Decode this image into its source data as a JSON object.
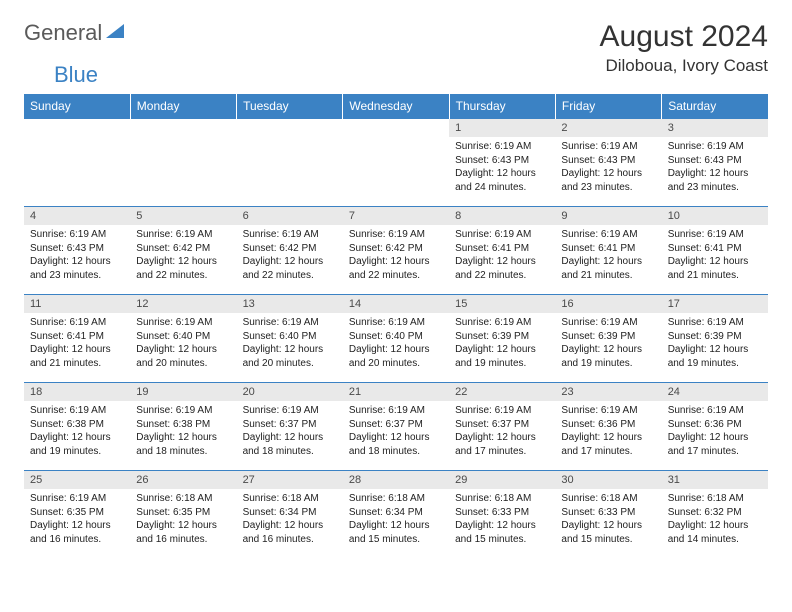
{
  "logo": {
    "general": "General",
    "blue": "Blue"
  },
  "title": "August 2024",
  "location": "Diloboua, Ivory Coast",
  "colors": {
    "headerBg": "#3b82c4",
    "dayBg": "#e9e9e9"
  },
  "weekdays": [
    "Sunday",
    "Monday",
    "Tuesday",
    "Wednesday",
    "Thursday",
    "Friday",
    "Saturday"
  ],
  "weeks": [
    [
      null,
      null,
      null,
      null,
      {
        "n": "1",
        "sr": "6:19 AM",
        "ss": "6:43 PM",
        "dl": "12 hours and 24 minutes."
      },
      {
        "n": "2",
        "sr": "6:19 AM",
        "ss": "6:43 PM",
        "dl": "12 hours and 23 minutes."
      },
      {
        "n": "3",
        "sr": "6:19 AM",
        "ss": "6:43 PM",
        "dl": "12 hours and 23 minutes."
      }
    ],
    [
      {
        "n": "4",
        "sr": "6:19 AM",
        "ss": "6:43 PM",
        "dl": "12 hours and 23 minutes."
      },
      {
        "n": "5",
        "sr": "6:19 AM",
        "ss": "6:42 PM",
        "dl": "12 hours and 22 minutes."
      },
      {
        "n": "6",
        "sr": "6:19 AM",
        "ss": "6:42 PM",
        "dl": "12 hours and 22 minutes."
      },
      {
        "n": "7",
        "sr": "6:19 AM",
        "ss": "6:42 PM",
        "dl": "12 hours and 22 minutes."
      },
      {
        "n": "8",
        "sr": "6:19 AM",
        "ss": "6:41 PM",
        "dl": "12 hours and 22 minutes."
      },
      {
        "n": "9",
        "sr": "6:19 AM",
        "ss": "6:41 PM",
        "dl": "12 hours and 21 minutes."
      },
      {
        "n": "10",
        "sr": "6:19 AM",
        "ss": "6:41 PM",
        "dl": "12 hours and 21 minutes."
      }
    ],
    [
      {
        "n": "11",
        "sr": "6:19 AM",
        "ss": "6:41 PM",
        "dl": "12 hours and 21 minutes."
      },
      {
        "n": "12",
        "sr": "6:19 AM",
        "ss": "6:40 PM",
        "dl": "12 hours and 20 minutes."
      },
      {
        "n": "13",
        "sr": "6:19 AM",
        "ss": "6:40 PM",
        "dl": "12 hours and 20 minutes."
      },
      {
        "n": "14",
        "sr": "6:19 AM",
        "ss": "6:40 PM",
        "dl": "12 hours and 20 minutes."
      },
      {
        "n": "15",
        "sr": "6:19 AM",
        "ss": "6:39 PM",
        "dl": "12 hours and 19 minutes."
      },
      {
        "n": "16",
        "sr": "6:19 AM",
        "ss": "6:39 PM",
        "dl": "12 hours and 19 minutes."
      },
      {
        "n": "17",
        "sr": "6:19 AM",
        "ss": "6:39 PM",
        "dl": "12 hours and 19 minutes."
      }
    ],
    [
      {
        "n": "18",
        "sr": "6:19 AM",
        "ss": "6:38 PM",
        "dl": "12 hours and 19 minutes."
      },
      {
        "n": "19",
        "sr": "6:19 AM",
        "ss": "6:38 PM",
        "dl": "12 hours and 18 minutes."
      },
      {
        "n": "20",
        "sr": "6:19 AM",
        "ss": "6:37 PM",
        "dl": "12 hours and 18 minutes."
      },
      {
        "n": "21",
        "sr": "6:19 AM",
        "ss": "6:37 PM",
        "dl": "12 hours and 18 minutes."
      },
      {
        "n": "22",
        "sr": "6:19 AM",
        "ss": "6:37 PM",
        "dl": "12 hours and 17 minutes."
      },
      {
        "n": "23",
        "sr": "6:19 AM",
        "ss": "6:36 PM",
        "dl": "12 hours and 17 minutes."
      },
      {
        "n": "24",
        "sr": "6:19 AM",
        "ss": "6:36 PM",
        "dl": "12 hours and 17 minutes."
      }
    ],
    [
      {
        "n": "25",
        "sr": "6:19 AM",
        "ss": "6:35 PM",
        "dl": "12 hours and 16 minutes."
      },
      {
        "n": "26",
        "sr": "6:18 AM",
        "ss": "6:35 PM",
        "dl": "12 hours and 16 minutes."
      },
      {
        "n": "27",
        "sr": "6:18 AM",
        "ss": "6:34 PM",
        "dl": "12 hours and 16 minutes."
      },
      {
        "n": "28",
        "sr": "6:18 AM",
        "ss": "6:34 PM",
        "dl": "12 hours and 15 minutes."
      },
      {
        "n": "29",
        "sr": "6:18 AM",
        "ss": "6:33 PM",
        "dl": "12 hours and 15 minutes."
      },
      {
        "n": "30",
        "sr": "6:18 AM",
        "ss": "6:33 PM",
        "dl": "12 hours and 15 minutes."
      },
      {
        "n": "31",
        "sr": "6:18 AM",
        "ss": "6:32 PM",
        "dl": "12 hours and 14 minutes."
      }
    ]
  ],
  "labels": {
    "sunrise": "Sunrise:",
    "sunset": "Sunset:",
    "daylight": "Daylight:"
  }
}
